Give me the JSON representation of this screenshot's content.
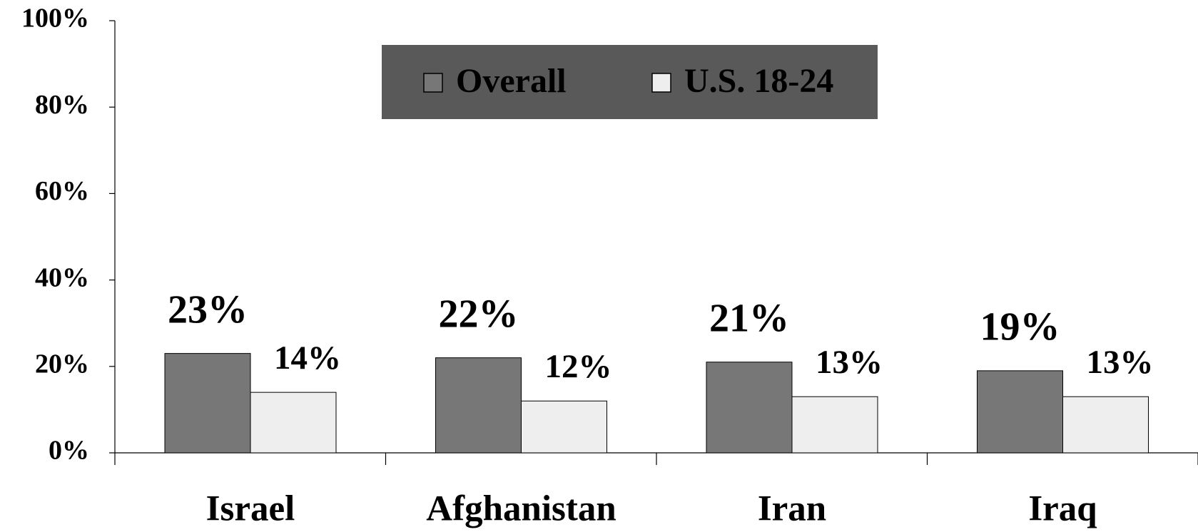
{
  "chart_data": {
    "type": "bar",
    "categories": [
      "Israel",
      "Afghanistan",
      "Iran",
      "Iraq"
    ],
    "series": [
      {
        "name": "Overall",
        "color": "#777777",
        "values": [
          23,
          22,
          21,
          19
        ],
        "value_labels": [
          "23%",
          "22%",
          "21%",
          "19%"
        ]
      },
      {
        "name": "U.S. 18-24",
        "color": "#eeeeee",
        "values": [
          14,
          12,
          13,
          13
        ],
        "value_labels": [
          "14%",
          "12%",
          "13%",
          "13%"
        ]
      }
    ],
    "ylim": [
      0,
      100
    ],
    "yticks": [
      {
        "value": 0,
        "label": "0%"
      },
      {
        "value": 20,
        "label": "20%"
      },
      {
        "value": 40,
        "label": "40%"
      },
      {
        "value": 60,
        "label": "60%"
      },
      {
        "value": 80,
        "label": "80%"
      },
      {
        "value": 100,
        "label": "100%"
      }
    ],
    "legend": "top"
  }
}
